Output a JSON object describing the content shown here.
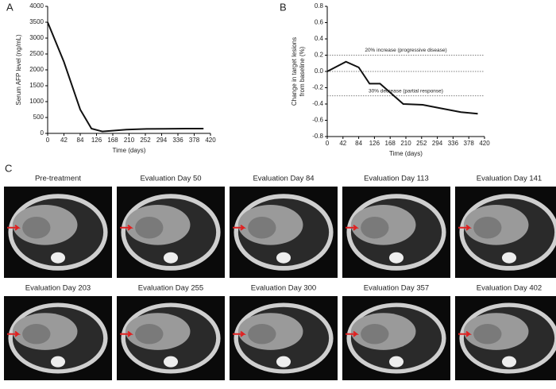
{
  "chart_data": [
    {
      "type": "line",
      "x": [
        0,
        42,
        84,
        113,
        141,
        203,
        255,
        300,
        357,
        402
      ],
      "values": [
        3500,
        2250,
        750,
        150,
        60,
        120,
        140,
        145,
        150,
        150
      ],
      "color": "#111111",
      "xlim": [
        0,
        420
      ],
      "xticks": [
        0,
        42,
        84,
        126,
        168,
        210,
        252,
        294,
        336,
        378,
        420
      ],
      "ylim": [
        0,
        4000
      ],
      "yticks": [
        0,
        500,
        1000,
        1500,
        2000,
        2500,
        3000,
        3500,
        4000
      ],
      "xlabel": "Time (days)",
      "ylabel": [
        "Serum AFP level (ng/mL)"
      ]
    },
    {
      "type": "line",
      "x": [
        0,
        50,
        84,
        113,
        141,
        203,
        255,
        300,
        357,
        402
      ],
      "values": [
        0,
        0.12,
        0.05,
        -0.15,
        -0.15,
        -0.4,
        -0.41,
        -0.45,
        -0.5,
        -0.52
      ],
      "color": "#111111",
      "xlim": [
        0,
        420
      ],
      "xticks": [
        0,
        42,
        84,
        126,
        168,
        210,
        252,
        294,
        336,
        378,
        420
      ],
      "ylim": [
        -0.8,
        0.8
      ],
      "yticks": [
        -0.8,
        -0.6,
        -0.4,
        -0.2,
        {
          "value": 0,
          "label": "0.0"
        },
        0.2,
        0.4,
        0.6,
        0.8
      ],
      "xlabel": "Time (days)",
      "ylabel": [
        "Change in target lesions",
        "from baseline (%)"
      ],
      "reference_lines": [
        {
          "value": 0.2,
          "label": "20% increase (progressive disease)"
        },
        {
          "value": 0
        },
        {
          "value": -0.3,
          "label": "30% decrease (partial response)"
        }
      ]
    }
  ],
  "panel_labels": [
    "A",
    "B",
    "C"
  ],
  "images": [
    "Pre-treatment",
    "Evaluation Day 50",
    "Evaluation Day 84",
    "Evaluation Day 113",
    "Evaluation Day 141",
    "Evaluation Day 203",
    "Evaluation Day 255",
    "Evaluation Day 300",
    "Evaluation Day 357",
    "Evaluation Day 402"
  ]
}
